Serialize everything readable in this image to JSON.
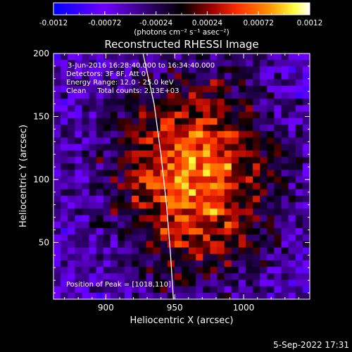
{
  "colorbar": {
    "ticks": [
      "-0.0012",
      "-0.00072",
      "-0.00024",
      "0.00024",
      "0.00072",
      "0.0012"
    ],
    "tick_values": [
      -0.0012,
      -0.00072,
      -0.00024,
      0.00024,
      0.00072,
      0.0012
    ],
    "range": [
      -0.0012,
      0.0012
    ],
    "unit_label": "(photons cm⁻² s⁻¹ asec⁻²)",
    "colors": [
      "#0000ff",
      "#7000ff",
      "#000000",
      "#a00000",
      "#ff3000",
      "#ff9000",
      "#ffff40",
      "#ffffff"
    ]
  },
  "title": "Reconstructed RHESSI Image",
  "info": {
    "line1": "3-Jun-2016 16:28:40.000 to 16:34:40.000",
    "line2": "Detectors: 3F 8F, Att 0",
    "line3": "Energy Range: 12.0 - 25.0 keV",
    "line4": "Clean     Total counts: 2.13E+03",
    "peak": "Position of Peak = [1018,110]"
  },
  "footer": {
    "date": "5-Sep-2022 17:31"
  },
  "chart_data": {
    "type": "heatmap",
    "title": "Reconstructed RHESSI Image",
    "xlabel": "Heliocentric X (arcsec)",
    "ylabel": "Heliocentric Y (arcsec)",
    "xlim": [
      862,
      1048
    ],
    "ylim": [
      5,
      200
    ],
    "xticks": [
      900,
      950,
      1000
    ],
    "yticks": [
      50,
      100,
      150,
      200
    ],
    "xtick_labels": [
      "900",
      "950",
      "1000"
    ],
    "ytick_labels": [
      "50",
      "100",
      "150",
      "200"
    ],
    "grid": false,
    "value_range": [
      -0.0012,
      0.0012
    ],
    "grid_size": [
      36,
      38
    ],
    "peak_position": [
      1018,
      110
    ],
    "limb_curve": [
      [
        927,
        200
      ],
      [
        935,
        160
      ],
      [
        940,
        120
      ],
      [
        944,
        80
      ],
      [
        947,
        40
      ],
      [
        949,
        5
      ]
    ]
  }
}
